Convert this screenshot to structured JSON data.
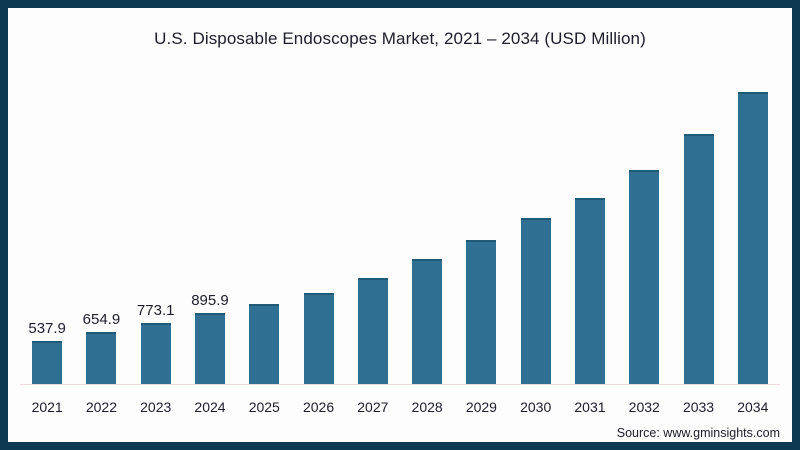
{
  "title": "U.S. Disposable Endoscopes Market, 2021 – 2034 (USD Million)",
  "source": "Source: www.gminsights.com",
  "colors": {
    "bar": "#2f7092",
    "bar_top_edge": "#1f5a78",
    "frame_border": "#0d3a52",
    "background": "#fdfdfd",
    "axis_line": "#eddcdc",
    "text": "#1d1d2b"
  },
  "chart_data": {
    "type": "bar",
    "title": "U.S. Disposable Endoscopes Market, 2021 – 2034 (USD Million)",
    "categories": [
      "2021",
      "2022",
      "2023",
      "2024",
      "2025",
      "2026",
      "2027",
      "2028",
      "2029",
      "2030",
      "2031",
      "2032",
      "2033",
      "2034"
    ],
    "values": [
      537.9,
      654.9,
      773.1,
      895.9,
      1005,
      1145,
      1340,
      1580,
      1820,
      2095,
      2350,
      2700,
      3155,
      3690
    ],
    "data_labels": [
      "537.9",
      "654.9",
      "773.1",
      "895.9",
      "",
      "",
      "",
      "",
      "",
      "",
      "",
      "",
      "",
      ""
    ],
    "xlabel": "",
    "ylabel": "",
    "ylim": [
      0,
      3700
    ],
    "grid": false,
    "legend": false,
    "bar_color": "#2f7092"
  }
}
